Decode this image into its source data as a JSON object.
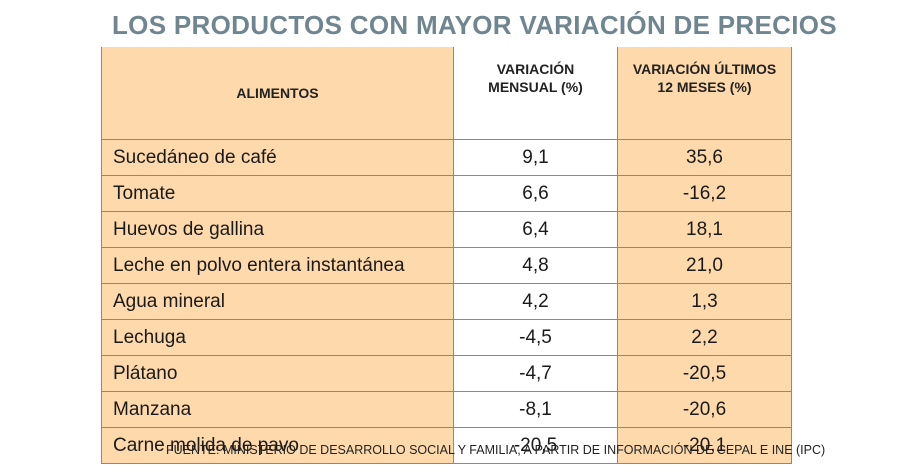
{
  "title": "LOS PRODUCTOS CON MAYOR VARIACIÓN DE PRECIOS",
  "table": {
    "headers": {
      "food": "ALIMENTOS",
      "monthly_line1": "VARIACIÓN",
      "monthly_line2": "MENSUAL (%)",
      "yearly_line1": "VARIACIÓN ÚLTIMOS",
      "yearly_line2": "12 MESES (%)"
    },
    "rows": [
      {
        "food": "Sucedáneo de café",
        "monthly": "9,1",
        "yearly": "35,6"
      },
      {
        "food": "Tomate",
        "monthly": "6,6",
        "yearly": "-16,2"
      },
      {
        "food": "Huevos de gallina",
        "monthly": "6,4",
        "yearly": "18,1"
      },
      {
        "food": "Leche en polvo entera instantánea",
        "monthly": "4,8",
        "yearly": "21,0"
      },
      {
        "food": "Agua mineral",
        "monthly": "4,2",
        "yearly": "1,3"
      },
      {
        "food": "Lechuga",
        "monthly": "-4,5",
        "yearly": "2,2"
      },
      {
        "food": "Plátano",
        "monthly": "-4,7",
        "yearly": "-20,5"
      },
      {
        "food": "Manzana",
        "monthly": "-8,1",
        "yearly": "-20,6"
      },
      {
        "food": "Carne molida de pavo",
        "monthly": "-20,5",
        "yearly": "-20,1"
      }
    ]
  },
  "source": "FUENTE: MINISTERIO DE DESARROLLO SOCIAL Y FAMILIA, A PARTIR DE INFORMACIÓN DE CEPAL E INE (IPC)",
  "colors": {
    "title": "#6f8691",
    "highlight_column": "#fdd9ab",
    "border": "#8a8a8a"
  }
}
